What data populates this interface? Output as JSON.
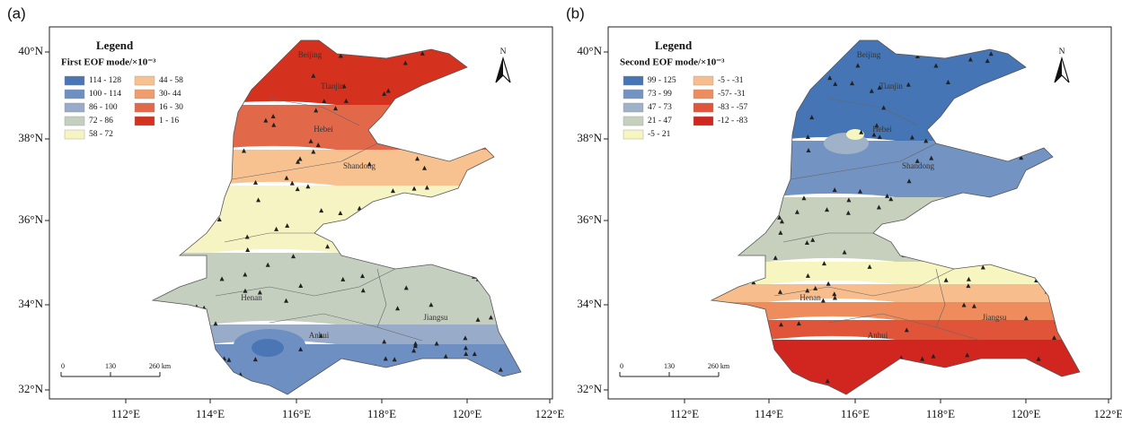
{
  "panels": [
    {
      "tag": "(a)",
      "legend": {
        "title": "Legend",
        "subtitle": "First EOF mode/×10⁻³",
        "items": [
          {
            "label": "114 - 128",
            "color": "#4a76b6"
          },
          {
            "label": "100 - 114",
            "color": "#6e8fc2"
          },
          {
            "label": "86 - 100",
            "color": "#98abc8"
          },
          {
            "label": "72 - 86",
            "color": "#c5cfbf"
          },
          {
            "label": "58 - 72",
            "color": "#f6f4c2"
          },
          {
            "label": "44 - 58",
            "color": "#f8c290"
          },
          {
            "label": "30- 44",
            "color": "#f09c6c"
          },
          {
            "label": "16 - 30",
            "color": "#e2684a"
          },
          {
            "label": "1 - 16",
            "color": "#d4311f"
          }
        ]
      },
      "lat_labels": [
        "40°N",
        "38°N",
        "36°N",
        "34°N",
        "32°N"
      ],
      "lon_labels": [
        "112°E",
        "114°E",
        "116°E",
        "118°E",
        "120°E",
        "122°E"
      ],
      "provinces": [
        "Beijing",
        "Tianjin",
        "Hebei",
        "Shandong",
        "Henan",
        "Anhui",
        "Jiangsu"
      ],
      "scale": [
        "0",
        "130",
        "260 km"
      ],
      "north": "N"
    },
    {
      "tag": "(b)",
      "legend": {
        "title": "Legend",
        "subtitle": "Second EOF mode/×10⁻³",
        "items": [
          {
            "label": "99 - 125",
            "color": "#4575b5"
          },
          {
            "label": "73 - 99",
            "color": "#7393c2"
          },
          {
            "label": "47 - 73",
            "color": "#a0b2c8"
          },
          {
            "label": "21 - 47",
            "color": "#c6d0bd"
          },
          {
            "label": "-5 - 21",
            "color": "#f7f6c0"
          },
          {
            "label": "-5 - -31",
            "color": "#f8bd8c"
          },
          {
            "label": "-57- -31",
            "color": "#ef8c5e"
          },
          {
            "label": "-83 - -57",
            "color": "#e0553a"
          },
          {
            "label": "-12 - -83",
            "color": "#d1261f"
          }
        ]
      },
      "lat_labels": [
        "40°N",
        "38°N",
        "36°N",
        "34°N",
        "32°N"
      ],
      "lon_labels": [
        "112°E",
        "114°E",
        "116°E",
        "118°E",
        "120°E",
        "122°E"
      ],
      "provinces": [
        "Beijing",
        "Tianjin",
        "Hebei",
        "Shandong",
        "Henan",
        "Anhui",
        "Jiangsu"
      ],
      "scale": [
        "0",
        "130",
        "260 km"
      ],
      "north": "N"
    }
  ]
}
